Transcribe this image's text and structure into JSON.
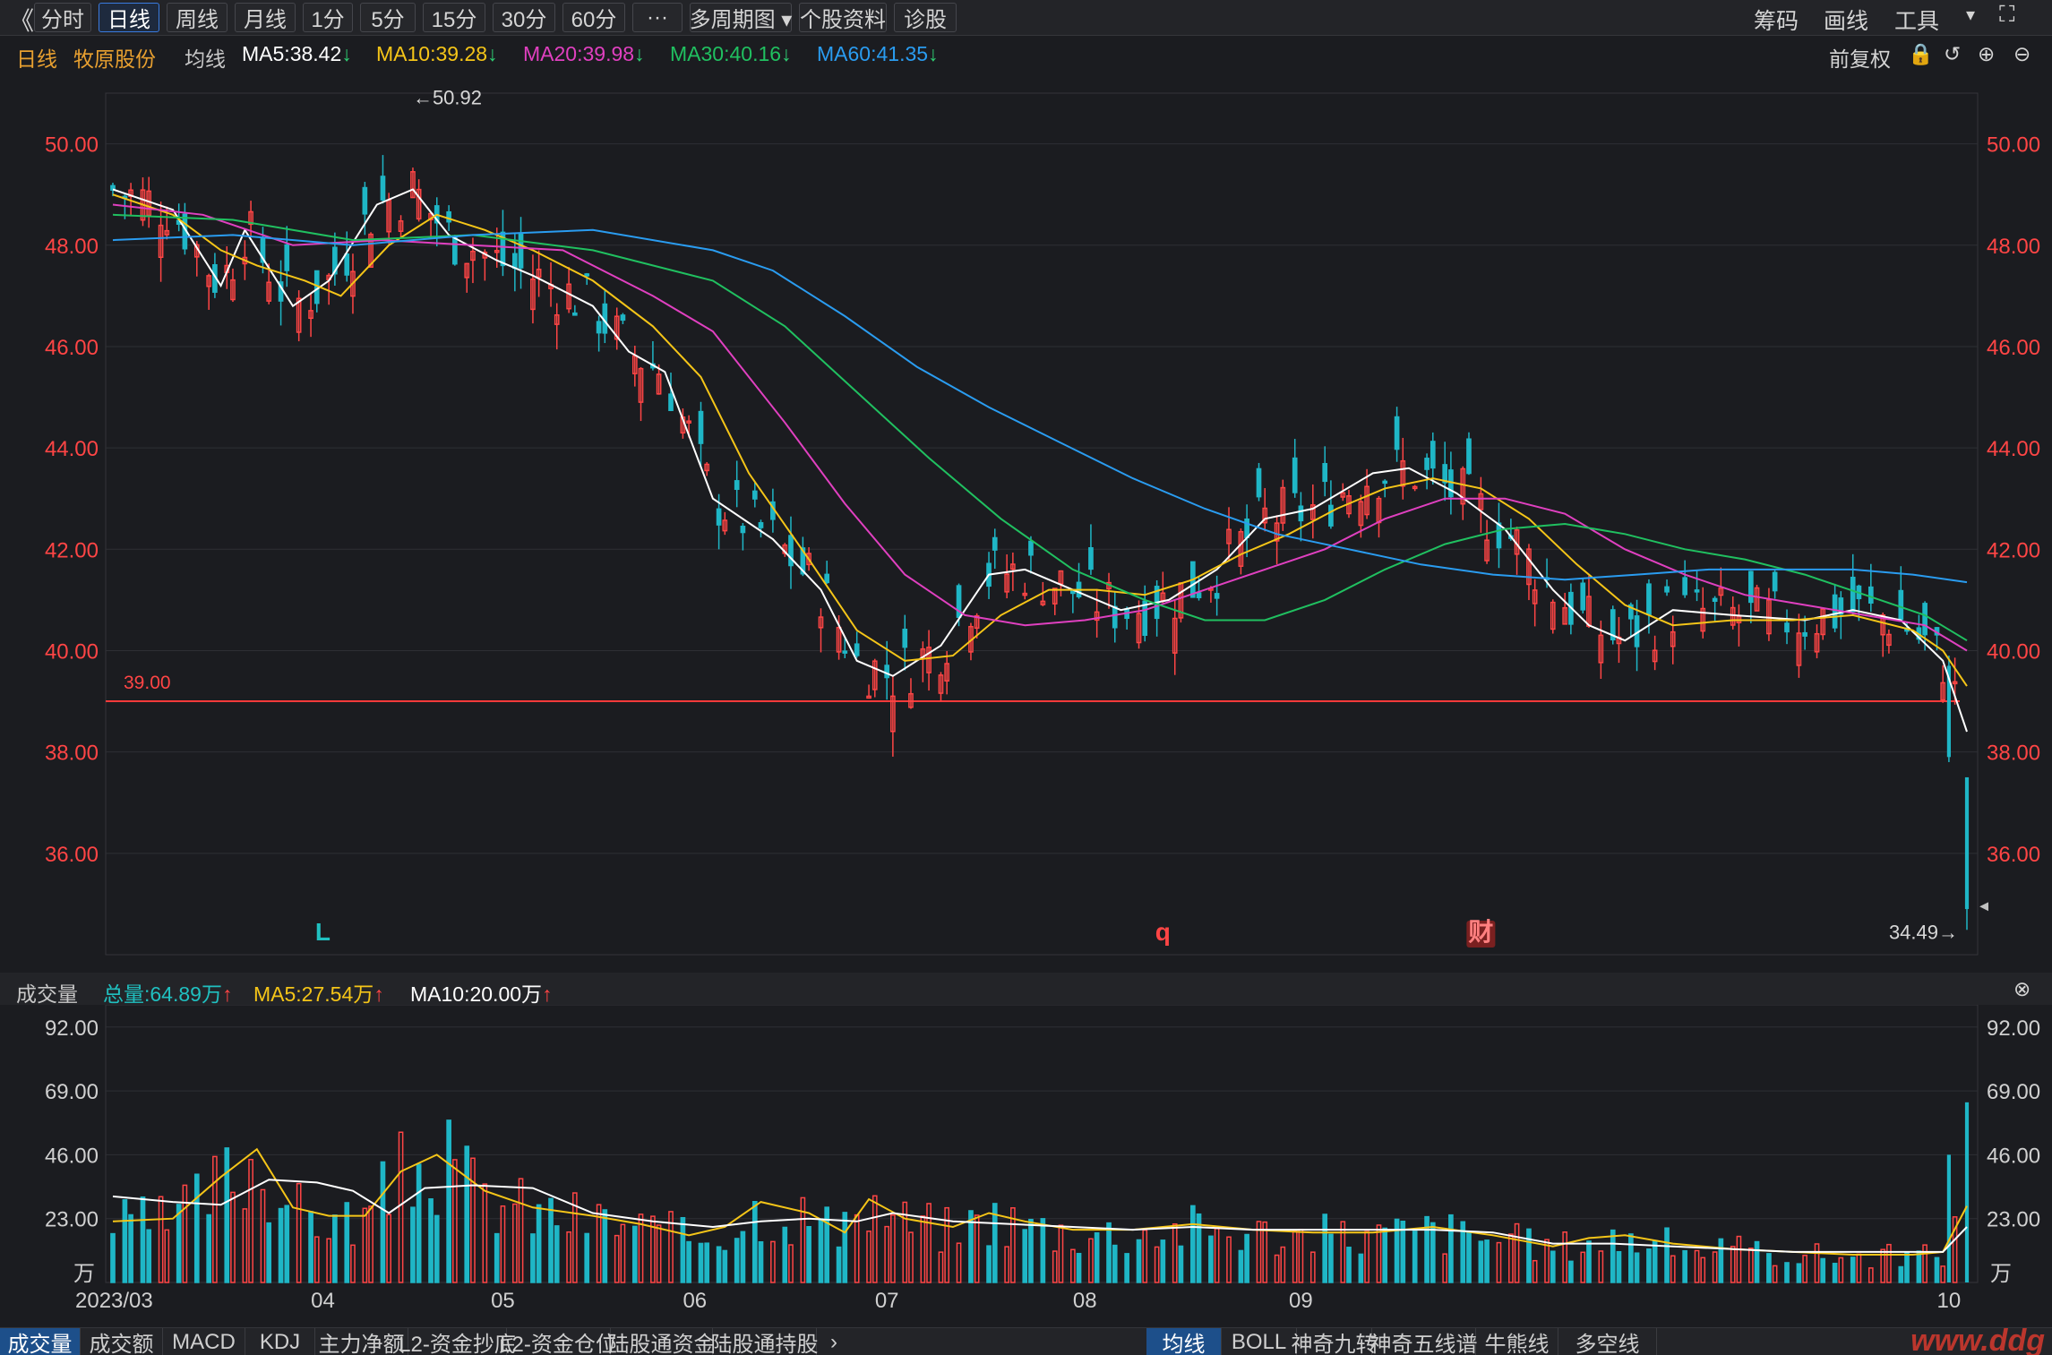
{
  "toolbar": {
    "collapse_icon": "double-chevron-left-icon",
    "buttons": [
      "分时",
      "日线",
      "周线",
      "月线",
      "1分",
      "5分",
      "15分",
      "30分",
      "60分",
      "···",
      "多周期图",
      "个股资料",
      "诊股"
    ],
    "active": "日线",
    "right": [
      "筹码",
      "画线",
      "工具"
    ],
    "fullscreen_icon": "fullscreen-icon"
  },
  "header": {
    "period": "日线",
    "stock": "牧原股份",
    "ma_label": "均线",
    "ma": [
      {
        "name": "MA5",
        "value": "38.42",
        "color": "#ffffff",
        "dir": "down"
      },
      {
        "name": "MA10",
        "value": "39.28",
        "color": "#f5c518",
        "dir": "down"
      },
      {
        "name": "MA20",
        "value": "39.98",
        "color": "#e040c0",
        "dir": "down"
      },
      {
        "name": "MA30",
        "value": "40.16",
        "color": "#20c060",
        "dir": "down"
      },
      {
        "name": "MA60",
        "value": "41.35",
        "color": "#2a9cf0",
        "dir": "down"
      }
    ],
    "right_label": "前复权"
  },
  "volume_header": {
    "label": "成交量",
    "total": "总量:64.89万",
    "ma5": "MA5:27.54万",
    "ma10": "MA10:20.00万"
  },
  "chart_data": [
    {
      "type": "candlestick",
      "title": "牧原股份 日线",
      "ylim": [
        34,
        51
      ],
      "yticks": [
        "50.00",
        "48.00",
        "46.00",
        "44.00",
        "42.00",
        "40.00",
        "38.00",
        "36.00"
      ],
      "reference_line": {
        "value": 39.0,
        "label": "39.00"
      },
      "max_annotation": "←50.92",
      "min_annotation": "34.49→",
      "markers": [
        {
          "text": "L",
          "color": "#20c0c0"
        },
        {
          "text": "q",
          "color": "#ff4545"
        },
        {
          "text": "财",
          "color": "#ff8080"
        }
      ],
      "x_labels": [
        "2023/03",
        "04",
        "05",
        "06",
        "07",
        "08",
        "09",
        "10"
      ],
      "series": [
        {
          "name": "MA5",
          "color": "#ffffff",
          "points": [
            [
              0,
              49.1
            ],
            [
              10,
              48.7
            ],
            [
              18,
              47.2
            ],
            [
              22,
              48.3
            ],
            [
              30,
              46.8
            ],
            [
              36,
              47.3
            ],
            [
              44,
              48.8
            ],
            [
              50,
              49.1
            ],
            [
              56,
              48.2
            ],
            [
              64,
              47.7
            ],
            [
              70,
              47.4
            ],
            [
              80,
              46.8
            ],
            [
              86,
              45.9
            ],
            [
              92,
              45.5
            ],
            [
              100,
              43.0
            ],
            [
              110,
              42.2
            ],
            [
              118,
              41.2
            ],
            [
              124,
              39.8
            ],
            [
              130,
              39.5
            ],
            [
              138,
              40.1
            ],
            [
              146,
              41.5
            ],
            [
              152,
              41.6
            ],
            [
              160,
              41.2
            ],
            [
              168,
              40.8
            ],
            [
              176,
              41.0
            ],
            [
              184,
              41.6
            ],
            [
              192,
              42.6
            ],
            [
              200,
              42.8
            ],
            [
              210,
              43.5
            ],
            [
              216,
              43.6
            ],
            [
              224,
              43.1
            ],
            [
              232,
              42.4
            ],
            [
              240,
              41.2
            ],
            [
              246,
              40.5
            ],
            [
              252,
              40.2
            ],
            [
              260,
              40.8
            ],
            [
              270,
              40.7
            ],
            [
              282,
              40.6
            ],
            [
              290,
              40.8
            ],
            [
              298,
              40.6
            ],
            [
              305,
              39.8
            ],
            [
              309,
              38.4
            ]
          ]
        },
        {
          "name": "MA10",
          "color": "#f5c518",
          "points": [
            [
              0,
              49.0
            ],
            [
              10,
              48.6
            ],
            [
              18,
              47.9
            ],
            [
              24,
              47.6
            ],
            [
              32,
              47.3
            ],
            [
              38,
              47.0
            ],
            [
              46,
              48.0
            ],
            [
              54,
              48.6
            ],
            [
              62,
              48.3
            ],
            [
              70,
              47.9
            ],
            [
              80,
              47.3
            ],
            [
              90,
              46.4
            ],
            [
              98,
              45.4
            ],
            [
              106,
              43.5
            ],
            [
              116,
              41.8
            ],
            [
              124,
              40.4
            ],
            [
              132,
              39.8
            ],
            [
              140,
              39.9
            ],
            [
              148,
              40.7
            ],
            [
              156,
              41.2
            ],
            [
              164,
              41.2
            ],
            [
              172,
              41.1
            ],
            [
              180,
              41.4
            ],
            [
              188,
              41.9
            ],
            [
              196,
              42.3
            ],
            [
              204,
              42.8
            ],
            [
              212,
              43.2
            ],
            [
              220,
              43.4
            ],
            [
              228,
              43.2
            ],
            [
              236,
              42.6
            ],
            [
              244,
              41.7
            ],
            [
              252,
              40.9
            ],
            [
              260,
              40.5
            ],
            [
              270,
              40.6
            ],
            [
              280,
              40.6
            ],
            [
              290,
              40.7
            ],
            [
              300,
              40.4
            ],
            [
              305,
              40.0
            ],
            [
              309,
              39.3
            ]
          ]
        },
        {
          "name": "MA20",
          "color": "#e040c0",
          "points": [
            [
              0,
              48.8
            ],
            [
              15,
              48.6
            ],
            [
              30,
              48.0
            ],
            [
              45,
              48.1
            ],
            [
              60,
              48.0
            ],
            [
              75,
              47.9
            ],
            [
              90,
              47.0
            ],
            [
              100,
              46.3
            ],
            [
              112,
              44.5
            ],
            [
              122,
              42.9
            ],
            [
              132,
              41.5
            ],
            [
              142,
              40.7
            ],
            [
              152,
              40.5
            ],
            [
              162,
              40.6
            ],
            [
              172,
              40.8
            ],
            [
              182,
              41.2
            ],
            [
              192,
              41.6
            ],
            [
              202,
              42.0
            ],
            [
              212,
              42.6
            ],
            [
              222,
              43.0
            ],
            [
              232,
              43.0
            ],
            [
              242,
              42.7
            ],
            [
              252,
              42.0
            ],
            [
              262,
              41.5
            ],
            [
              272,
              41.1
            ],
            [
              282,
              40.9
            ],
            [
              292,
              40.7
            ],
            [
              302,
              40.5
            ],
            [
              309,
              40.0
            ]
          ]
        },
        {
          "name": "MA30",
          "color": "#20c060",
          "points": [
            [
              0,
              48.6
            ],
            [
              20,
              48.5
            ],
            [
              40,
              48.1
            ],
            [
              60,
              48.2
            ],
            [
              80,
              47.9
            ],
            [
              100,
              47.3
            ],
            [
              112,
              46.4
            ],
            [
              124,
              45.1
            ],
            [
              136,
              43.8
            ],
            [
              148,
              42.6
            ],
            [
              160,
              41.6
            ],
            [
              172,
              41.0
            ],
            [
              182,
              40.6
            ],
            [
              192,
              40.6
            ],
            [
              202,
              41.0
            ],
            [
              212,
              41.6
            ],
            [
              222,
              42.1
            ],
            [
              232,
              42.4
            ],
            [
              242,
              42.5
            ],
            [
              252,
              42.3
            ],
            [
              262,
              42.0
            ],
            [
              272,
              41.8
            ],
            [
              282,
              41.5
            ],
            [
              292,
              41.1
            ],
            [
              302,
              40.7
            ],
            [
              309,
              40.2
            ]
          ]
        },
        {
          "name": "MA60",
          "color": "#2a9cf0",
          "points": [
            [
              0,
              48.1
            ],
            [
              20,
              48.2
            ],
            [
              40,
              48.0
            ],
            [
              60,
              48.2
            ],
            [
              80,
              48.3
            ],
            [
              100,
              47.9
            ],
            [
              110,
              47.5
            ],
            [
              122,
              46.6
            ],
            [
              134,
              45.6
            ],
            [
              146,
              44.8
            ],
            [
              158,
              44.1
            ],
            [
              170,
              43.4
            ],
            [
              182,
              42.8
            ],
            [
              194,
              42.3
            ],
            [
              206,
              42.0
            ],
            [
              218,
              41.7
            ],
            [
              230,
              41.5
            ],
            [
              242,
              41.4
            ],
            [
              254,
              41.5
            ],
            [
              266,
              41.6
            ],
            [
              278,
              41.6
            ],
            [
              290,
              41.6
            ],
            [
              300,
              41.5
            ],
            [
              309,
              41.35
            ]
          ]
        }
      ]
    },
    {
      "type": "bar",
      "title": "成交量",
      "unit": "万",
      "ylim": [
        0,
        100
      ],
      "yticks": [
        "92.00",
        "69.00",
        "46.00",
        "23.00"
      ],
      "last_value": 64.89,
      "series": [
        {
          "name": "MA5",
          "color": "#f5c518",
          "points": [
            [
              0,
              22
            ],
            [
              10,
              23
            ],
            [
              18,
              38
            ],
            [
              24,
              48
            ],
            [
              30,
              27
            ],
            [
              36,
              24
            ],
            [
              42,
              24
            ],
            [
              48,
              40
            ],
            [
              54,
              46
            ],
            [
              62,
              33
            ],
            [
              70,
              27
            ],
            [
              80,
              24
            ],
            [
              88,
              21
            ],
            [
              96,
              17
            ],
            [
              102,
              20
            ],
            [
              108,
              29
            ],
            [
              116,
              25
            ],
            [
              122,
              18
            ],
            [
              126,
              30
            ],
            [
              132,
              23
            ],
            [
              140,
              20
            ],
            [
              146,
              25
            ],
            [
              152,
              22
            ],
            [
              160,
              19
            ],
            [
              170,
              19
            ],
            [
              180,
              21
            ],
            [
              190,
              19
            ],
            [
              200,
              18
            ],
            [
              210,
              18
            ],
            [
              220,
              20
            ],
            [
              230,
              17
            ],
            [
              240,
              13
            ],
            [
              246,
              16
            ],
            [
              252,
              17
            ],
            [
              260,
              14
            ],
            [
              270,
              12
            ],
            [
              280,
              11
            ],
            [
              290,
              10
            ],
            [
              300,
              10
            ],
            [
              305,
              11
            ],
            [
              309,
              27.54
            ]
          ]
        },
        {
          "name": "MA10",
          "color": "#ffffff",
          "points": [
            [
              0,
              31
            ],
            [
              10,
              29
            ],
            [
              18,
              28
            ],
            [
              26,
              37
            ],
            [
              34,
              36
            ],
            [
              40,
              33
            ],
            [
              46,
              25
            ],
            [
              52,
              34
            ],
            [
              60,
              35
            ],
            [
              70,
              34
            ],
            [
              80,
              25
            ],
            [
              90,
              22
            ],
            [
              100,
              20
            ],
            [
              108,
              22
            ],
            [
              116,
              23
            ],
            [
              124,
              22
            ],
            [
              130,
              25
            ],
            [
              140,
              22
            ],
            [
              150,
              21
            ],
            [
              160,
              20
            ],
            [
              170,
              19
            ],
            [
              180,
              20
            ],
            [
              190,
              19
            ],
            [
              200,
              19
            ],
            [
              210,
              19
            ],
            [
              220,
              19
            ],
            [
              230,
              18
            ],
            [
              240,
              14
            ],
            [
              250,
              14
            ],
            [
              260,
              13
            ],
            [
              270,
              12
            ],
            [
              280,
              11
            ],
            [
              290,
              11
            ],
            [
              300,
              11
            ],
            [
              305,
              11
            ],
            [
              309,
              20.0
            ]
          ]
        }
      ]
    }
  ]
}
